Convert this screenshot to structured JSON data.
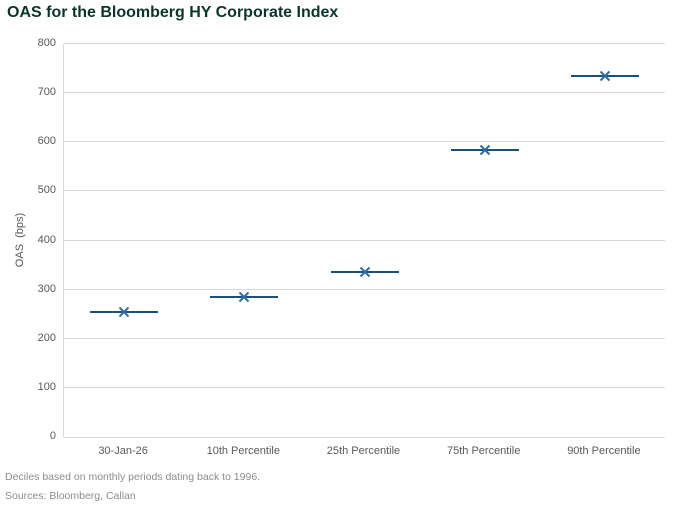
{
  "title": "OAS for the Bloomberg HY Corporate Index",
  "footnotes": [
    "Deciles based on monthly periods dating back to 1996.",
    "Sources: Bloomberg, Callan"
  ],
  "chart_data": {
    "type": "scatter",
    "title": "OAS for the Bloomberg HY Corporate Index",
    "categories": [
      "30-Jan-26",
      "10th Percentile",
      "25th Percentile",
      "75th Percentile",
      "90th Percentile"
    ],
    "values": [
      255,
      285,
      335,
      585,
      735
    ],
    "marker": "x-with-horizontal-dash",
    "xlabel": "",
    "ylabel": "OAS  (bps)",
    "ylim": [
      0,
      800
    ],
    "ytick_step": 100,
    "grid": "horizontal",
    "legend": "none",
    "colors": {
      "title_text": "#0B352A",
      "series_line": "#1B4F7C",
      "marker_x": "#2E6DA8",
      "gridline": "#D9D9D9",
      "axis_text": "#595959",
      "footnote_text": "#8C8C8C"
    }
  }
}
